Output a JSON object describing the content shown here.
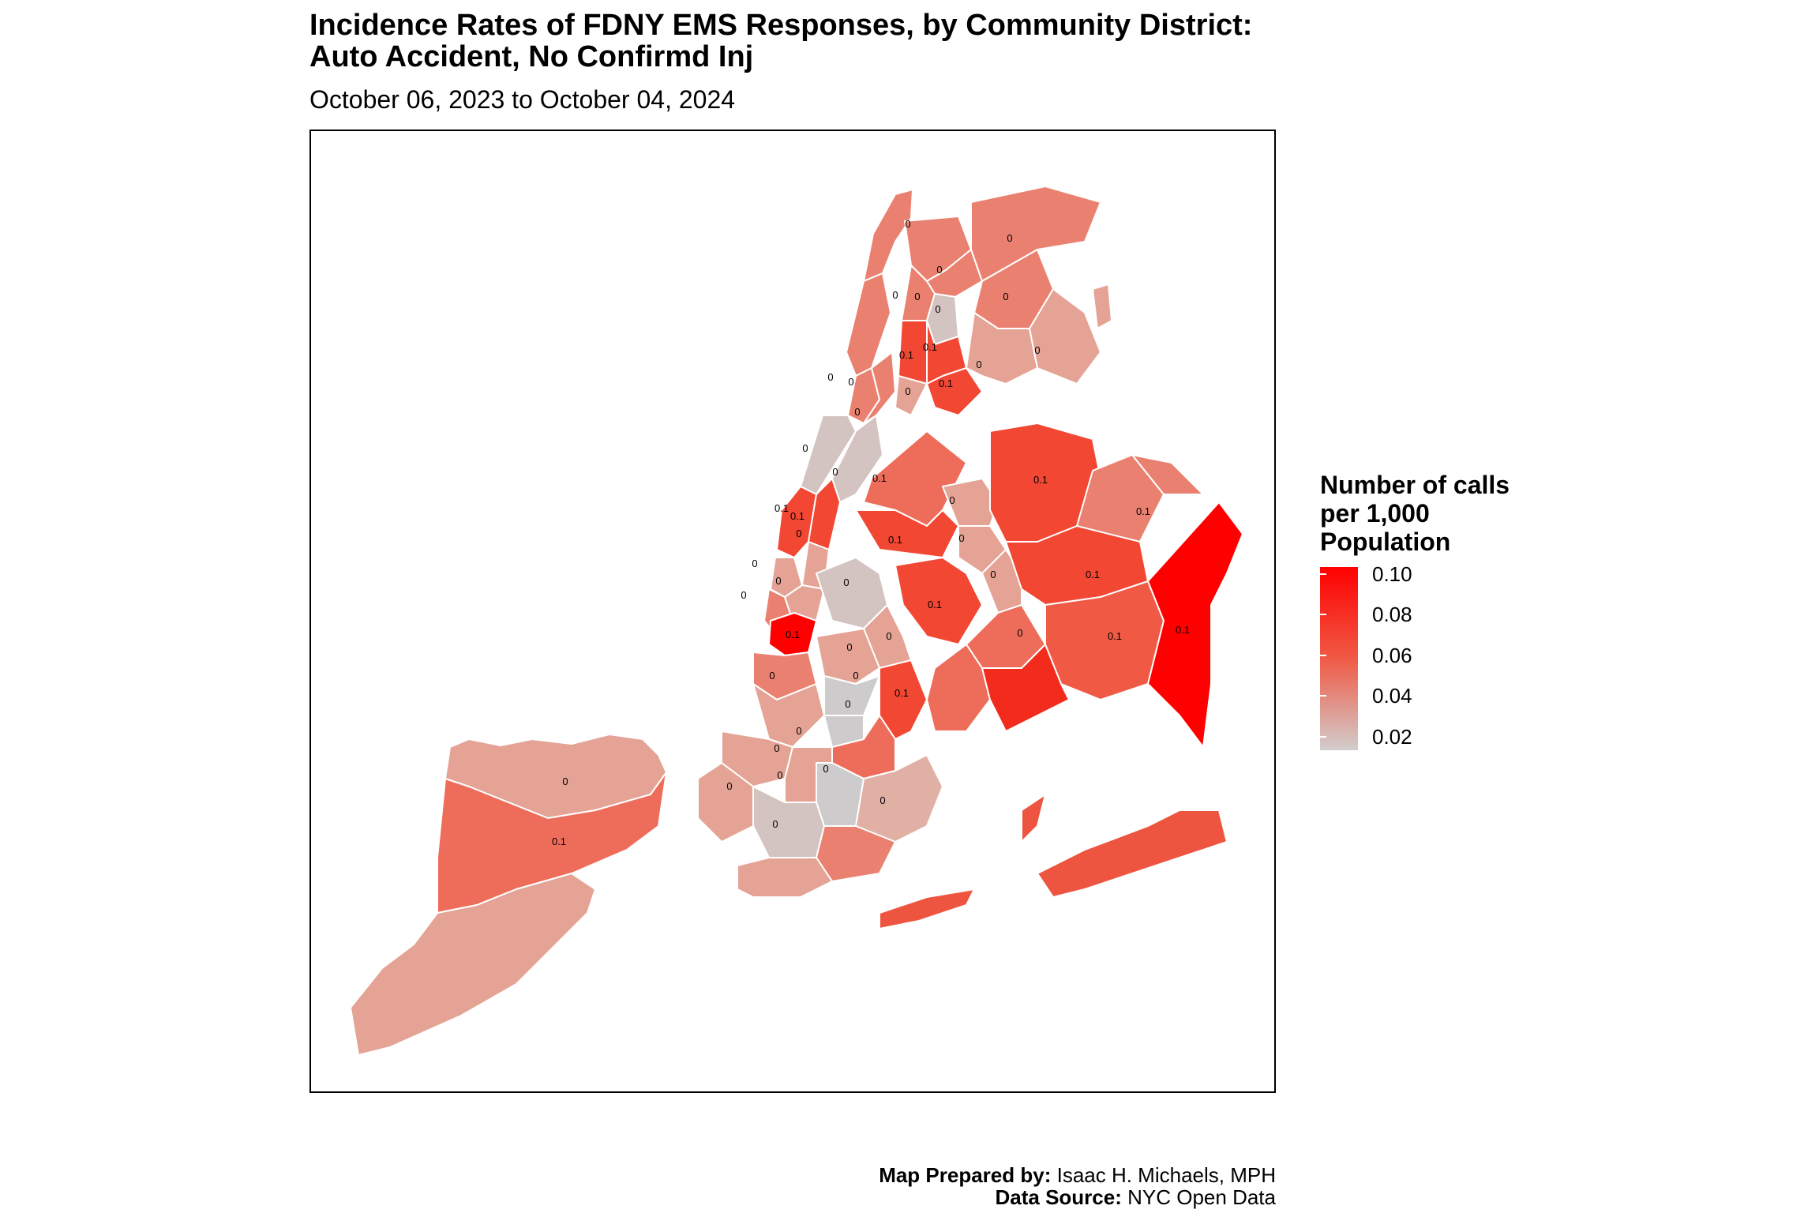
{
  "title_line1": "Incidence Rates of FDNY EMS Responses, by Community District:",
  "title_line2": "Auto Accident, No Confirmd Inj",
  "subtitle": "October 06, 2023 to October 04, 2024",
  "legend": {
    "title_line1": "Number of calls",
    "title_line2": "per 1,000",
    "title_line3": "Population",
    "ticks": [
      "0.10",
      "0.08",
      "0.06",
      "0.04",
      "0.02"
    ],
    "color_high": "#ff0000",
    "color_mid": "#f05a45",
    "color_low": "#d2cdcd"
  },
  "caption": {
    "prepared_label": "Map Prepared by:",
    "prepared_value": "Isaac H. Michaels, MPH",
    "source_label": "Data Source:",
    "source_value": "NYC Open Data"
  },
  "district_labels": [
    "0",
    "0",
    "0",
    "0",
    "0",
    "0",
    "0.1",
    "0.1",
    "0",
    "0",
    "0",
    "0.1",
    "0",
    "0",
    "0",
    "0",
    "0.1",
    "0.1",
    "0",
    "0",
    "0.1",
    "0",
    "0.1",
    "0.1",
    "0",
    "0",
    "0",
    "0.1",
    "0",
    "0",
    "0.1",
    "0",
    "0",
    "0.1",
    "0.1",
    "0",
    "0",
    "0",
    "0.1",
    "0.1",
    "0",
    "0",
    "0.1",
    "0",
    "0",
    "0",
    "0",
    "0",
    "0",
    "0",
    "0",
    "0.1",
    "0"
  ]
}
